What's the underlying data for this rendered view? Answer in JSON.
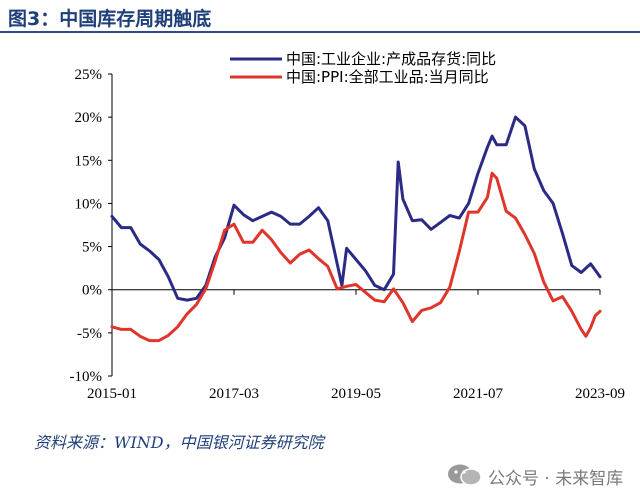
{
  "header": {
    "title": "图3：中国库存周期触底"
  },
  "source": "资料来源：WIND，中国银河证券研究院",
  "watermark": {
    "text": "公众号 · 未来智库",
    "icon": "wechat-icon"
  },
  "colors": {
    "series1": "#2b2b86",
    "series2": "#e0352b",
    "axis": "#000000",
    "text": "#1f3f7a"
  },
  "chart_data": {
    "type": "line",
    "title": "",
    "xlabel": "",
    "ylabel": "",
    "ylim": [
      -10,
      25
    ],
    "yticks": [
      -10,
      -5,
      0,
      5,
      10,
      15,
      20,
      25
    ],
    "ytick_labels": [
      "-10%",
      "-5%",
      "0%",
      "5%",
      "10%",
      "15%",
      "20%",
      "25%"
    ],
    "xlim": [
      "2015-01",
      "2023-09"
    ],
    "xtick_labels": [
      "2015-01",
      "2017-03",
      "2019-05",
      "2021-07",
      "2023-09"
    ],
    "grid": false,
    "legend_position": "top",
    "series": [
      {
        "name": "中国:工业企业:产成品存货:同比",
        "color": "#2b2b86",
        "points": [
          [
            "2015-01",
            8.5
          ],
          [
            "2015-03",
            7.2
          ],
          [
            "2015-05",
            7.2
          ],
          [
            "2015-07",
            5.3
          ],
          [
            "2015-09",
            4.5
          ],
          [
            "2015-11",
            3.5
          ],
          [
            "2016-01",
            1.5
          ],
          [
            "2016-03",
            -1.0
          ],
          [
            "2016-05",
            -1.2
          ],
          [
            "2016-07",
            -1.0
          ],
          [
            "2016-09",
            0.5
          ],
          [
            "2016-11",
            3.8
          ],
          [
            "2017-01",
            6.0
          ],
          [
            "2017-03",
            9.8
          ],
          [
            "2017-05",
            8.7
          ],
          [
            "2017-07",
            8.0
          ],
          [
            "2017-09",
            8.5
          ],
          [
            "2017-11",
            9.0
          ],
          [
            "2018-01",
            8.5
          ],
          [
            "2018-03",
            7.6
          ],
          [
            "2018-05",
            7.6
          ],
          [
            "2018-07",
            8.5
          ],
          [
            "2018-09",
            9.5
          ],
          [
            "2018-11",
            8.0
          ],
          [
            "2019-01",
            3.0
          ],
          [
            "2019-02",
            0.5
          ],
          [
            "2019-03",
            4.8
          ],
          [
            "2019-05",
            3.5
          ],
          [
            "2019-07",
            2.2
          ],
          [
            "2019-09",
            0.5
          ],
          [
            "2019-11",
            0.0
          ],
          [
            "2020-01",
            1.8
          ],
          [
            "2020-02",
            14.8
          ],
          [
            "2020-03",
            10.5
          ],
          [
            "2020-05",
            8.0
          ],
          [
            "2020-07",
            8.1
          ],
          [
            "2020-09",
            7.0
          ],
          [
            "2020-11",
            7.8
          ],
          [
            "2021-01",
            8.6
          ],
          [
            "2021-03",
            8.3
          ],
          [
            "2021-05",
            10.0
          ],
          [
            "2021-07",
            13.5
          ],
          [
            "2021-09",
            16.5
          ],
          [
            "2021-10",
            17.8
          ],
          [
            "2021-11",
            16.8
          ],
          [
            "2022-01",
            16.8
          ],
          [
            "2022-03",
            20.0
          ],
          [
            "2022-05",
            19.0
          ],
          [
            "2022-07",
            14.0
          ],
          [
            "2022-09",
            11.5
          ],
          [
            "2022-11",
            10.0
          ],
          [
            "2023-01",
            6.5
          ],
          [
            "2023-03",
            2.8
          ],
          [
            "2023-05",
            2.0
          ],
          [
            "2023-07",
            3.0
          ],
          [
            "2023-09",
            1.5
          ]
        ]
      },
      {
        "name": "中国:PPI:全部工业品:当月同比",
        "color": "#e0352b",
        "points": [
          [
            "2015-01",
            -4.3
          ],
          [
            "2015-03",
            -4.6
          ],
          [
            "2015-05",
            -4.6
          ],
          [
            "2015-07",
            -5.4
          ],
          [
            "2015-09",
            -5.9
          ],
          [
            "2015-11",
            -5.9
          ],
          [
            "2016-01",
            -5.3
          ],
          [
            "2016-03",
            -4.3
          ],
          [
            "2016-05",
            -2.8
          ],
          [
            "2016-07",
            -1.7
          ],
          [
            "2016-09",
            0.1
          ],
          [
            "2016-11",
            3.3
          ],
          [
            "2017-01",
            6.9
          ],
          [
            "2017-03",
            7.6
          ],
          [
            "2017-05",
            5.5
          ],
          [
            "2017-07",
            5.5
          ],
          [
            "2017-09",
            6.9
          ],
          [
            "2017-11",
            5.8
          ],
          [
            "2018-01",
            4.3
          ],
          [
            "2018-03",
            3.1
          ],
          [
            "2018-05",
            4.1
          ],
          [
            "2018-07",
            4.6
          ],
          [
            "2018-09",
            3.6
          ],
          [
            "2018-11",
            2.7
          ],
          [
            "2019-01",
            0.1
          ],
          [
            "2019-03",
            0.4
          ],
          [
            "2019-05",
            0.6
          ],
          [
            "2019-07",
            -0.3
          ],
          [
            "2019-09",
            -1.2
          ],
          [
            "2019-11",
            -1.4
          ],
          [
            "2020-01",
            0.1
          ],
          [
            "2020-03",
            -1.5
          ],
          [
            "2020-05",
            -3.7
          ],
          [
            "2020-07",
            -2.4
          ],
          [
            "2020-09",
            -2.1
          ],
          [
            "2020-11",
            -1.5
          ],
          [
            "2021-01",
            0.3
          ],
          [
            "2021-03",
            4.4
          ],
          [
            "2021-05",
            9.0
          ],
          [
            "2021-07",
            9.0
          ],
          [
            "2021-09",
            10.7
          ],
          [
            "2021-10",
            13.5
          ],
          [
            "2021-11",
            12.9
          ],
          [
            "2022-01",
            9.1
          ],
          [
            "2022-03",
            8.3
          ],
          [
            "2022-05",
            6.4
          ],
          [
            "2022-07",
            4.2
          ],
          [
            "2022-09",
            0.9
          ],
          [
            "2022-11",
            -1.3
          ],
          [
            "2023-01",
            -0.8
          ],
          [
            "2023-03",
            -2.5
          ],
          [
            "2023-05",
            -4.6
          ],
          [
            "2023-06",
            -5.4
          ],
          [
            "2023-07",
            -4.4
          ],
          [
            "2023-08",
            -3.0
          ],
          [
            "2023-09",
            -2.5
          ]
        ]
      }
    ]
  }
}
